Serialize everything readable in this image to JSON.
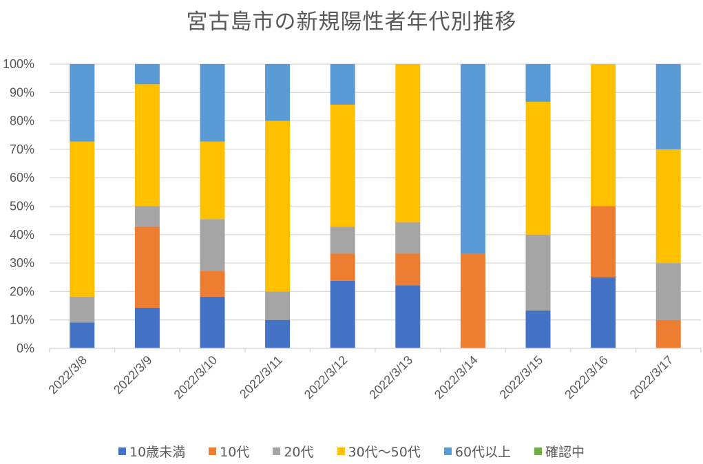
{
  "chart_data": {
    "type": "bar",
    "stacked": "percent",
    "title": "宮古島市の新規陽性者年代別推移",
    "xlabel": "",
    "ylabel": "",
    "ylim": [
      0,
      100
    ],
    "yticks": [
      "0%",
      "10%",
      "20%",
      "30%",
      "40%",
      "50%",
      "60%",
      "70%",
      "80%",
      "90%",
      "100%"
    ],
    "grid": true,
    "legend_position": "bottom",
    "categories": [
      "2022/3/8",
      "2022/3/9",
      "2022/3/10",
      "2022/3/11",
      "2022/3/12",
      "2022/3/13",
      "2022/3/14",
      "2022/3/15",
      "2022/3/16",
      "2022/3/17"
    ],
    "series": [
      {
        "name": "10歳未満",
        "color": "#4472C4",
        "values": [
          9.1,
          14.3,
          18.2,
          10.0,
          23.8,
          22.2,
          0,
          13.3,
          25.0,
          0
        ]
      },
      {
        "name": "10代",
        "color": "#ED7D31",
        "values": [
          0,
          28.6,
          9.1,
          0,
          9.5,
          11.1,
          33.3,
          0,
          25.0,
          10.0
        ]
      },
      {
        "name": "20代",
        "color": "#A5A5A5",
        "values": [
          9.1,
          7.1,
          18.2,
          10.0,
          9.5,
          11.1,
          0,
          26.7,
          0,
          20.0
        ]
      },
      {
        "name": "30代〜50代",
        "color": "#FFC000",
        "values": [
          54.5,
          42.9,
          27.3,
          60.0,
          42.9,
          55.6,
          0,
          46.7,
          50.0,
          40.0
        ]
      },
      {
        "name": "60代以上",
        "color": "#5B9BD5",
        "values": [
          27.3,
          7.1,
          27.3,
          20.0,
          14.3,
          0,
          66.7,
          13.3,
          0,
          30.0
        ]
      },
      {
        "name": "確認中",
        "color": "#70AD47",
        "values": [
          0,
          0,
          0,
          0,
          0,
          0,
          0,
          0,
          0,
          0
        ]
      }
    ]
  }
}
